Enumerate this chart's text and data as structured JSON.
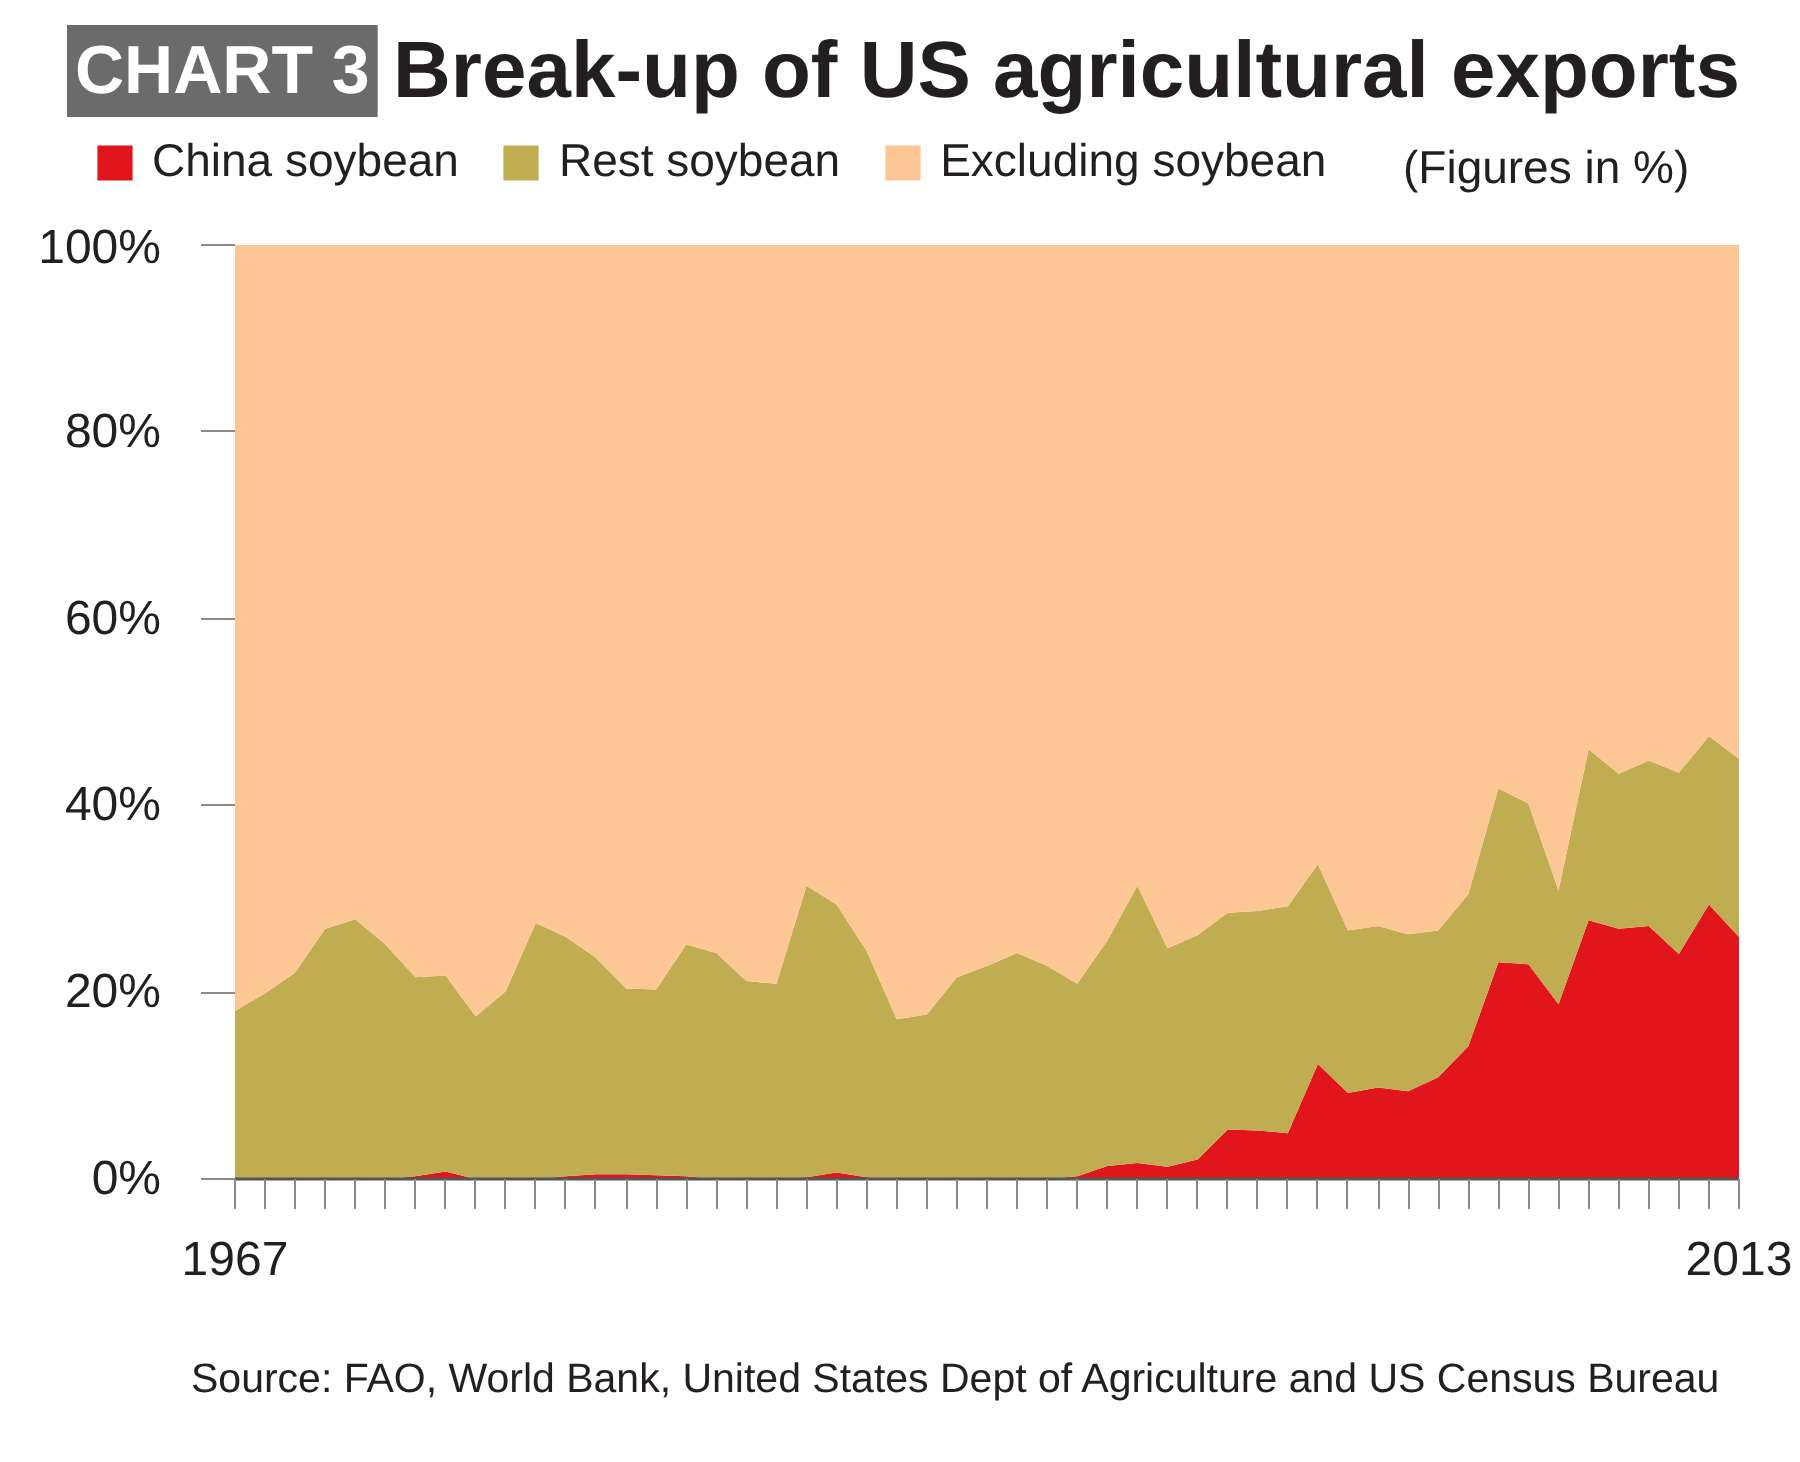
{
  "chart_data": {
    "type": "area",
    "title": "Break-up of US agricultural exports",
    "subtitle": "(Figures in %)",
    "annotations": [
      "CHART 3",
      "Source: FAO, World Bank, United States Dept of Agriculture and US Census Bureau"
    ],
    "categories": [
      "1967",
      null,
      null,
      null,
      null,
      null,
      null,
      null,
      null,
      null,
      null,
      null,
      null,
      null,
      null,
      null,
      null,
      null,
      null,
      null,
      null,
      null,
      null,
      null,
      null,
      null,
      null,
      null,
      null,
      null,
      null,
      null,
      null,
      null,
      null,
      null,
      null,
      null,
      null,
      null,
      null,
      null,
      null,
      null,
      null,
      null,
      null,
      null,
      null,
      null,
      "2013"
    ],
    "stacked": true,
    "series": [
      {
        "name": "China soybean",
        "color": "#e1151c",
        "values": [
          0,
          0,
          0,
          0,
          0,
          0,
          0.3,
          0.8,
          0,
          0,
          0,
          0.3,
          0.5,
          0.5,
          0.4,
          0.3,
          0,
          0,
          0,
          0.2,
          0.7,
          0.2,
          0,
          0,
          0,
          0,
          0,
          0,
          0.3,
          1.4,
          1.7,
          1.3,
          2.1,
          5.3,
          5.2,
          4.9,
          12.3,
          9.2,
          9.8,
          9.4,
          10.9,
          14.2,
          23.2,
          23.0,
          18.7,
          27.7,
          26.8,
          27.1,
          24.1,
          29.4,
          25.9
        ]
      },
      {
        "name": "Rest soybean",
        "color": "#c0ad52",
        "values": [
          18.0,
          19.9,
          22.1,
          26.8,
          27.8,
          25.1,
          21.3,
          21.0,
          17.4,
          20.1,
          27.4,
          25.6,
          23.2,
          19.9,
          19.9,
          24.8,
          24.2,
          21.2,
          20.9,
          31.2,
          28.7,
          24.2,
          17.1,
          17.6,
          21.6,
          22.8,
          24.2,
          22.8,
          20.6,
          24.1,
          29.7,
          23.4,
          24.0,
          23.2,
          23.5,
          24.3,
          21.4,
          17.4,
          17.3,
          16.8,
          15.7,
          16.3,
          18.6,
          17.2,
          12.2,
          18.3,
          16.6,
          17.7,
          19.4,
          18.0,
          19.1
        ]
      },
      {
        "name": "Excluding soybean",
        "color": "#fdc795",
        "values": [
          82.0,
          80.1,
          77.9,
          73.2,
          72.2,
          74.9,
          78.4,
          78.2,
          82.6,
          79.9,
          72.6,
          74.1,
          76.3,
          79.6,
          79.7,
          74.9,
          75.8,
          78.8,
          79.1,
          68.6,
          70.6,
          75.6,
          82.9,
          82.4,
          78.4,
          77.2,
          75.8,
          77.2,
          79.1,
          74.5,
          68.6,
          75.3,
          73.9,
          71.5,
          71.3,
          70.8,
          66.3,
          73.4,
          72.9,
          73.8,
          73.4,
          69.5,
          58.2,
          59.8,
          69.1,
          54.0,
          56.6,
          55.2,
          56.5,
          52.6,
          55.0
        ]
      }
    ],
    "ylim": [
      0,
      100
    ],
    "yticks": [
      {
        "value": 0,
        "label": "0%"
      },
      {
        "value": 20,
        "label": "20%"
      },
      {
        "value": 40,
        "label": "40%"
      },
      {
        "value": 60,
        "label": "60%"
      },
      {
        "value": 80,
        "label": "80%"
      },
      {
        "value": 100,
        "label": "100%"
      }
    ],
    "legend": "top"
  }
}
